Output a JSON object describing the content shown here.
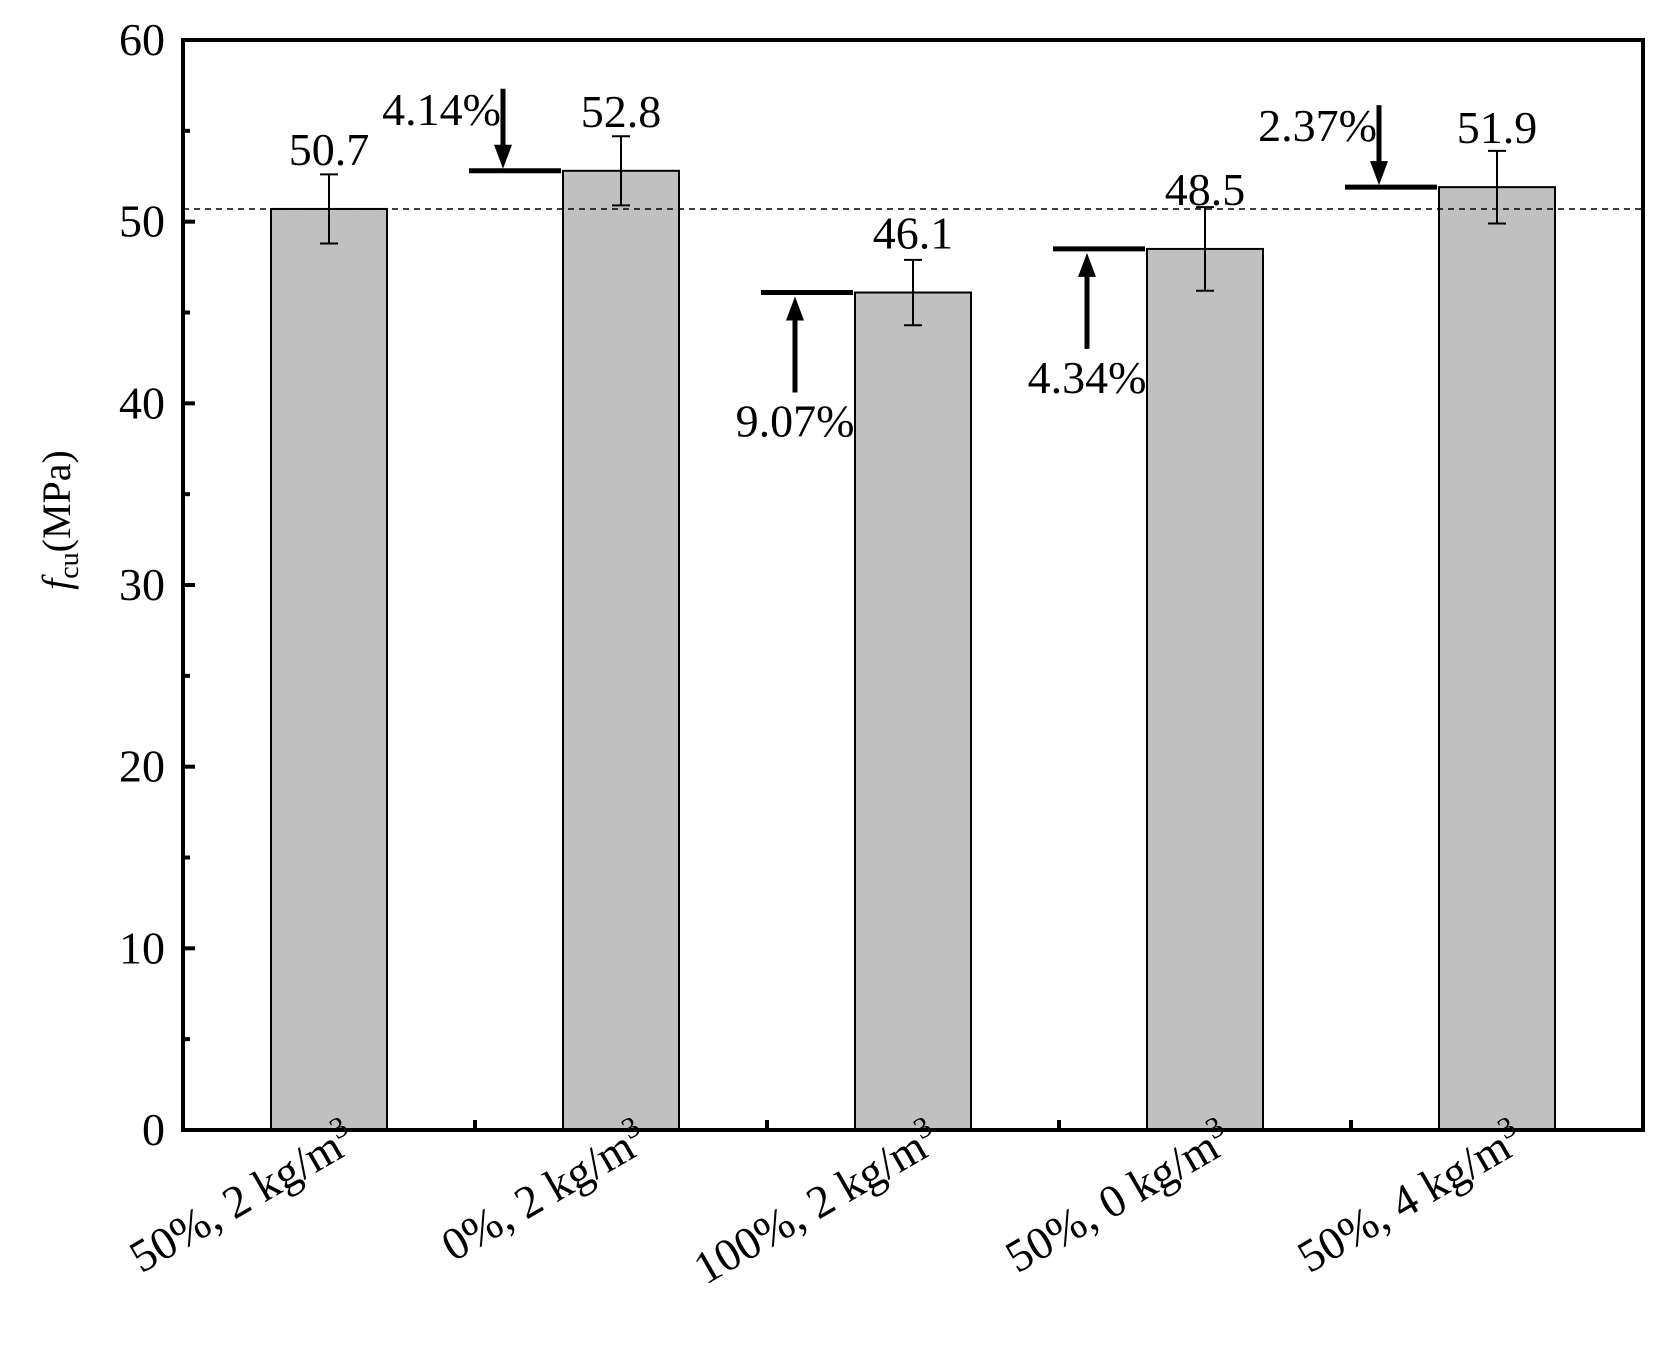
{
  "chart_data": {
    "type": "bar",
    "ylabel": {
      "italic": "f",
      "sub": "cu",
      "rest": "(MPa)"
    },
    "ylim": [
      0,
      60
    ],
    "yticks": [
      0,
      10,
      20,
      30,
      40,
      50,
      60
    ],
    "categories": [
      {
        "main": "50%, 2 kg/m",
        "sup": "3"
      },
      {
        "main": "0%, 2 kg/m",
        "sup": "3"
      },
      {
        "main": "100%, 2 kg/m",
        "sup": "3"
      },
      {
        "main": "50%, 0 kg/m",
        "sup": "3"
      },
      {
        "main": "50%, 4 kg/m",
        "sup": "3"
      }
    ],
    "values": [
      50.7,
      52.8,
      46.1,
      48.5,
      51.9
    ],
    "value_labels": [
      "50.7",
      "52.8",
      "46.1",
      "48.5",
      "51.9"
    ],
    "errors": [
      1.9,
      1.9,
      1.8,
      2.3,
      2.0
    ],
    "reference_line": 50.7,
    "annotations": [
      {
        "category_index": 1,
        "text": "4.14%",
        "direction": "down"
      },
      {
        "category_index": 2,
        "text": "9.07%",
        "direction": "up"
      },
      {
        "category_index": 3,
        "text": "4.34%",
        "direction": "up"
      },
      {
        "category_index": 4,
        "text": "2.37%",
        "direction": "down"
      }
    ],
    "grid": false,
    "colors": {
      "bar": "#c0c0c0",
      "stroke": "#000000"
    }
  }
}
